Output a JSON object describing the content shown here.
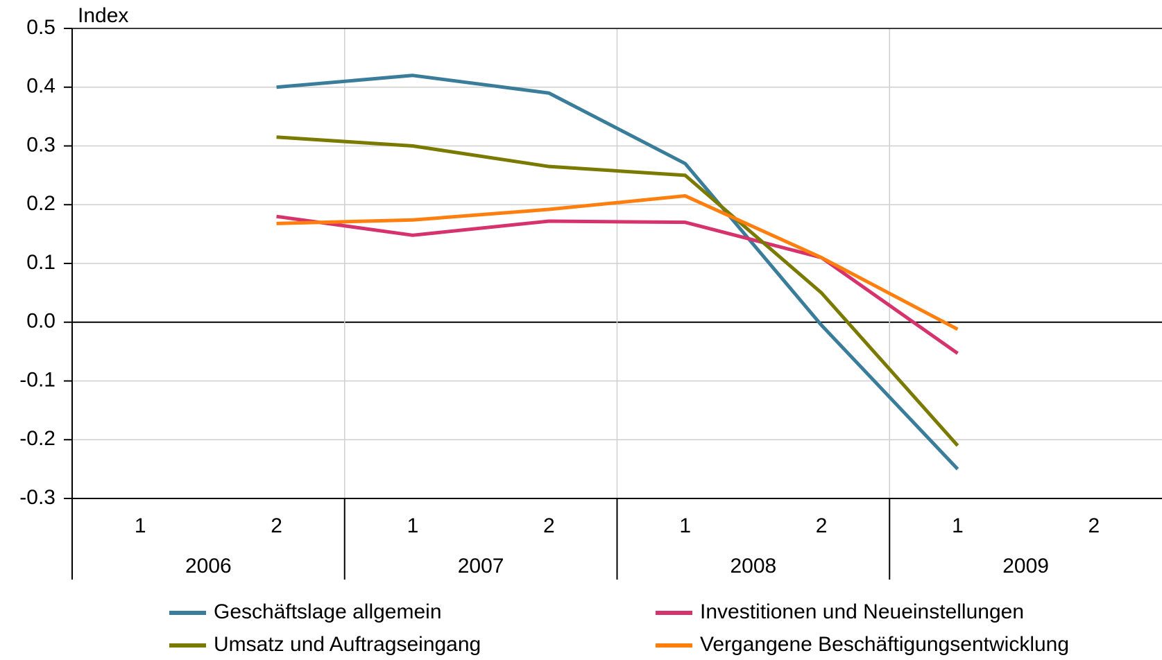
{
  "chart_data": {
    "type": "line",
    "y_label": "Index",
    "categories": [
      "1",
      "2",
      "1",
      "2",
      "1",
      "2",
      "1",
      "2"
    ],
    "year_labels": [
      "2006",
      "2007",
      "2008",
      "2009"
    ],
    "series": [
      {
        "name": "Geschäftslage allgemein",
        "color": "#3a7d9a",
        "values": [
          null,
          0.4,
          0.42,
          0.39,
          0.27,
          -0.005,
          -0.25,
          null
        ]
      },
      {
        "name": "Investitionen und Neueinstellungen",
        "color": "#d6336c",
        "values": [
          null,
          0.18,
          0.148,
          0.172,
          0.17,
          0.11,
          -0.053,
          null
        ]
      },
      {
        "name": "Umsatz und Auftragseingang",
        "color": "#7a7a00",
        "values": [
          null,
          0.315,
          0.3,
          0.265,
          0.25,
          0.05,
          -0.21,
          null
        ]
      },
      {
        "name": "Vergangene Beschäftigungsentwicklung",
        "color": "#ff7f0e",
        "values": [
          null,
          0.168,
          0.174,
          0.192,
          0.215,
          0.11,
          -0.012,
          null
        ]
      }
    ],
    "ylim": [
      -0.3,
      0.5
    ],
    "yticks": [
      -0.3,
      -0.2,
      -0.1,
      {
        "value": 0,
        "label": "0.0"
      },
      0.1,
      0.2,
      0.3,
      0.4,
      0.5
    ],
    "grid": true
  }
}
